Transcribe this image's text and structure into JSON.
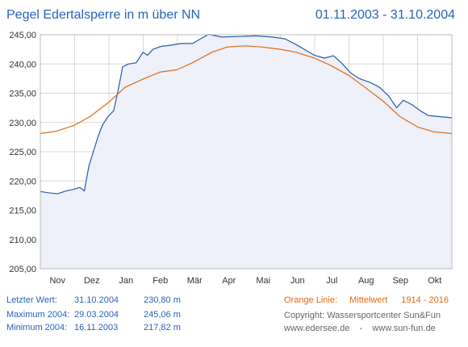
{
  "header": {
    "title": "Pegel Edertalsperre in m über NN",
    "period": "01.11.2003 - 31.10.2004"
  },
  "stats": {
    "last": {
      "label": "Letzter Wert:",
      "date": "31.10.2004",
      "value": "230,80 m"
    },
    "max": {
      "label": "Maximum 2004:",
      "date": "29.03.2004",
      "value": "245,06 m"
    },
    "min": {
      "label": "Minimum  2004:",
      "date": "16.11.2003",
      "value": "217,82 m"
    }
  },
  "legend": {
    "prefix": "Orange Linie:",
    "series": "Mittelwert",
    "range": "1914 - 2016"
  },
  "copyright": "Copyright: Wassersportcenter Sun&Fun",
  "links": "www.edersee.de    -    www.sun-fun.de",
  "colors": {
    "level_line": "#2a5aa8",
    "level_fill": "#eef0fa",
    "mean_line": "#e06a10",
    "grid": "#d8d8d8",
    "text_blue": "#2a62b8",
    "text_orange": "#e06a10"
  },
  "chart_data": {
    "type": "line",
    "xlabel": "",
    "ylabel": "",
    "ylim": [
      205,
      245
    ],
    "grid": true,
    "y_ticks": [
      "205,00",
      "210,00",
      "215,00",
      "220,00",
      "225,00",
      "230,00",
      "235,00",
      "240,00",
      "245,00"
    ],
    "x_ticks": [
      "Nov",
      "Dez",
      "Jan",
      "Feb",
      "Mär",
      "Apr",
      "Mai",
      "Jun",
      "Jul",
      "Aug",
      "Sep",
      "Okt"
    ],
    "x_range": [
      "2003-11-01",
      "2004-10-31"
    ],
    "series": [
      {
        "name": "",
        "role": "pegel",
        "area_fill": true,
        "points": [
          [
            "2003-11-01",
            218.2
          ],
          [
            "2003-11-08",
            218.0
          ],
          [
            "2003-11-16",
            217.8
          ],
          [
            "2003-11-24",
            218.3
          ],
          [
            "2003-12-01",
            218.6
          ],
          [
            "2003-12-06",
            218.9
          ],
          [
            "2003-12-10",
            218.3
          ],
          [
            "2003-12-14",
            222.5
          ],
          [
            "2003-12-18",
            225.0
          ],
          [
            "2003-12-22",
            227.5
          ],
          [
            "2003-12-26",
            229.5
          ],
          [
            "2003-12-31",
            231.0
          ],
          [
            "2004-01-05",
            232.0
          ],
          [
            "2004-01-09",
            235.5
          ],
          [
            "2004-01-13",
            239.5
          ],
          [
            "2004-01-18",
            240.0
          ],
          [
            "2004-01-25",
            240.2
          ],
          [
            "2004-01-31",
            242.0
          ],
          [
            "2004-02-04",
            241.5
          ],
          [
            "2004-02-09",
            242.5
          ],
          [
            "2004-02-16",
            243.0
          ],
          [
            "2004-02-24",
            243.2
          ],
          [
            "2004-03-05",
            243.5
          ],
          [
            "2004-03-15",
            243.5
          ],
          [
            "2004-03-29",
            245.06
          ],
          [
            "2004-04-10",
            244.6
          ],
          [
            "2004-04-25",
            244.7
          ],
          [
            "2004-05-10",
            244.8
          ],
          [
            "2004-05-25",
            244.6
          ],
          [
            "2004-06-05",
            244.3
          ],
          [
            "2004-06-15",
            243.3
          ],
          [
            "2004-06-22",
            242.5
          ],
          [
            "2004-07-01",
            241.5
          ],
          [
            "2004-07-10",
            241.0
          ],
          [
            "2004-07-18",
            241.4
          ],
          [
            "2004-07-25",
            240.2
          ],
          [
            "2004-08-02",
            238.5
          ],
          [
            "2004-08-10",
            237.5
          ],
          [
            "2004-08-20",
            236.8
          ],
          [
            "2004-08-28",
            236.0
          ],
          [
            "2004-09-05",
            234.5
          ],
          [
            "2004-09-12",
            232.5
          ],
          [
            "2004-09-18",
            233.8
          ],
          [
            "2004-09-26",
            233.0
          ],
          [
            "2004-10-03",
            232.0
          ],
          [
            "2004-10-10",
            231.2
          ],
          [
            "2004-10-20",
            231.0
          ],
          [
            "2004-10-31",
            230.8
          ]
        ]
      },
      {
        "name": "Mittelwert",
        "role": "mittelwert",
        "area_fill": false,
        "points": [
          [
            "2003-11-01",
            228.1
          ],
          [
            "2003-11-15",
            228.5
          ],
          [
            "2003-12-01",
            229.5
          ],
          [
            "2003-12-15",
            231.0
          ],
          [
            "2004-01-01",
            233.5
          ],
          [
            "2004-01-15",
            236.0
          ],
          [
            "2004-02-01",
            237.5
          ],
          [
            "2004-02-15",
            238.6
          ],
          [
            "2004-03-01",
            239.0
          ],
          [
            "2004-03-15",
            240.2
          ],
          [
            "2004-04-01",
            242.0
          ],
          [
            "2004-04-15",
            242.9
          ],
          [
            "2004-05-01",
            243.1
          ],
          [
            "2004-05-15",
            242.9
          ],
          [
            "2004-06-01",
            242.5
          ],
          [
            "2004-06-15",
            242.0
          ],
          [
            "2004-07-01",
            241.0
          ],
          [
            "2004-07-15",
            239.8
          ],
          [
            "2004-08-01",
            238.0
          ],
          [
            "2004-08-15",
            236.0
          ],
          [
            "2004-09-01",
            233.5
          ],
          [
            "2004-09-15",
            231.0
          ],
          [
            "2004-10-01",
            229.2
          ],
          [
            "2004-10-15",
            228.4
          ],
          [
            "2004-10-31",
            228.1
          ]
        ]
      }
    ]
  }
}
